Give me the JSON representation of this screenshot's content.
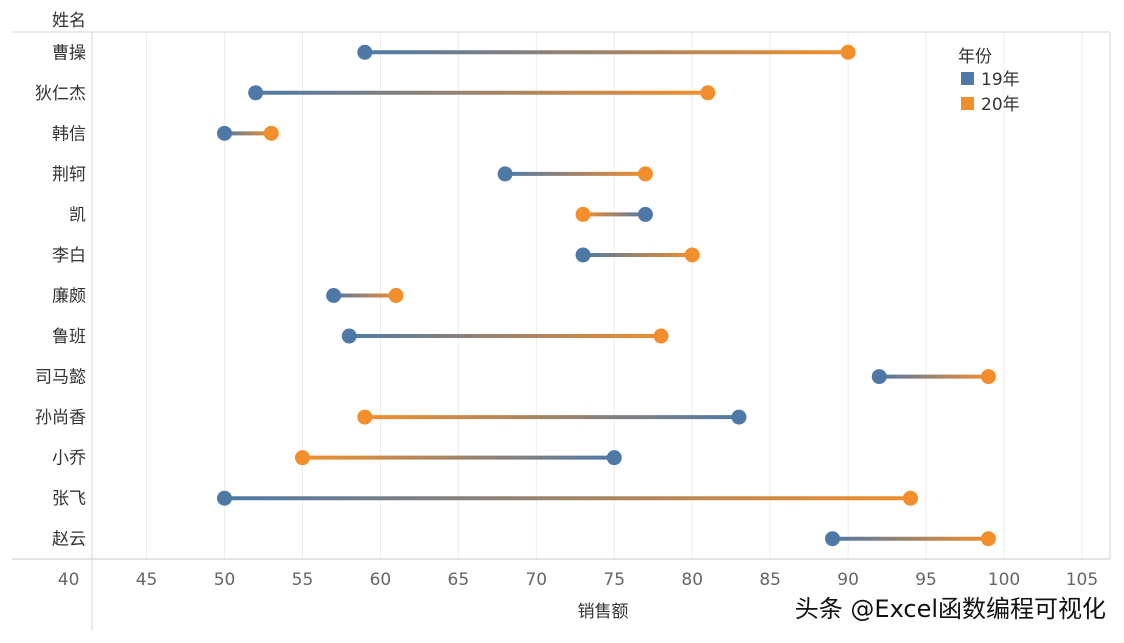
{
  "chart_data": {
    "type": "dumbbell",
    "row_header": "姓名",
    "xlabel": "销售额",
    "xlim": [
      40,
      105
    ],
    "xticks": [
      40,
      45,
      50,
      55,
      60,
      65,
      70,
      75,
      80,
      85,
      90,
      95,
      100,
      105
    ],
    "grid": "vertical",
    "legend": {
      "title": "年份",
      "placement": "top-right",
      "entries": [
        {
          "label": "19年",
          "color": "#4e79a7"
        },
        {
          "label": "20年",
          "color": "#f28e2b"
        }
      ]
    },
    "categories": [
      "曹操",
      "狄仁杰",
      "韩信",
      "荆轲",
      "凯",
      "李白",
      "廉颇",
      "鲁班",
      "司马懿",
      "孙尚香",
      "小乔",
      "张飞",
      "赵云"
    ],
    "series": [
      {
        "name": "19年",
        "values": [
          59,
          52,
          50,
          68,
          77,
          73,
          57,
          58,
          92,
          83,
          75,
          50,
          89
        ]
      },
      {
        "name": "20年",
        "values": [
          90,
          81,
          53,
          77,
          73,
          80,
          61,
          78,
          99,
          59,
          55,
          94,
          99
        ]
      }
    ]
  },
  "watermark": "头条 @Excel函数编程可视化"
}
